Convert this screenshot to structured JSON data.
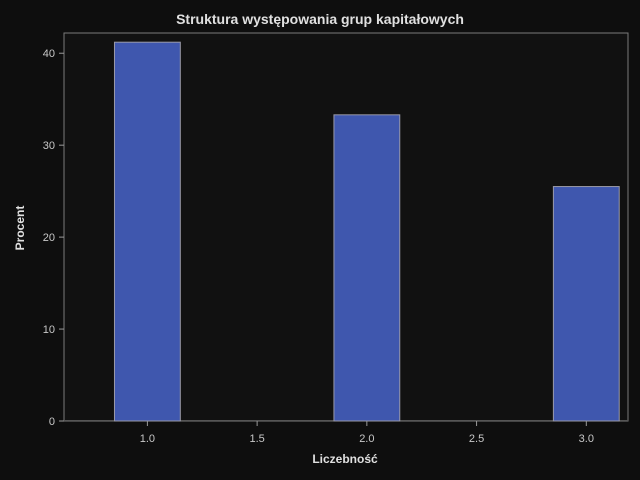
{
  "chart_data": {
    "type": "bar",
    "title": "Struktura występowania grup kapitałowych",
    "xlabel": "Liczebność",
    "ylabel": "Procent",
    "x": [
      1.0,
      2.0,
      3.0
    ],
    "values": [
      41.2,
      33.3,
      25.5
    ],
    "xlim": [
      0.62,
      3.19
    ],
    "ylim": [
      0,
      42.2
    ],
    "xticks": [
      "1.0",
      "1.5",
      "2.0",
      "2.5",
      "3.0"
    ],
    "xtick_values": [
      1.0,
      1.5,
      2.0,
      2.5,
      3.0
    ],
    "yticks": [
      "0",
      "10",
      "20",
      "30",
      "40"
    ],
    "ytick_values": [
      0,
      10,
      20,
      30,
      40
    ],
    "bar_color": "#3f57ae",
    "bar_edge_color": "#9a9aa8",
    "background_color": "#111111",
    "grid": false
  }
}
